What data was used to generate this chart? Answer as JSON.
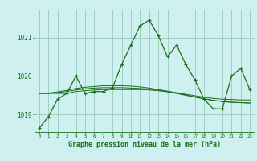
{
  "xlabel": "Graphe pression niveau de la mer (hPa)",
  "background_color": "#cff0f0",
  "grid_color": "#99ccbb",
  "line_color": "#1a6e1a",
  "hours": [
    0,
    1,
    2,
    3,
    4,
    5,
    6,
    7,
    8,
    9,
    10,
    11,
    12,
    13,
    14,
    15,
    16,
    17,
    18,
    19,
    20,
    21,
    22,
    23
  ],
  "main_series": [
    1018.65,
    1018.95,
    1019.4,
    1019.55,
    1020.0,
    1019.55,
    1019.6,
    1019.6,
    1019.7,
    1020.3,
    1020.8,
    1021.3,
    1021.45,
    1021.05,
    1020.5,
    1020.8,
    1020.3,
    1019.9,
    1019.4,
    1019.15,
    1019.15,
    1020.0,
    1020.2,
    1019.65
  ],
  "smooth1": [
    1019.55,
    1019.55,
    1019.55,
    1019.55,
    1019.6,
    1019.62,
    1019.64,
    1019.65,
    1019.65,
    1019.65,
    1019.65,
    1019.65,
    1019.64,
    1019.62,
    1019.6,
    1019.57,
    1019.53,
    1019.49,
    1019.45,
    1019.42,
    1019.4,
    1019.39,
    1019.38,
    1019.38
  ],
  "smooth2": [
    1019.55,
    1019.55,
    1019.57,
    1019.6,
    1019.64,
    1019.67,
    1019.69,
    1019.7,
    1019.7,
    1019.7,
    1019.69,
    1019.68,
    1019.66,
    1019.63,
    1019.59,
    1019.55,
    1019.5,
    1019.45,
    1019.41,
    1019.37,
    1019.34,
    1019.32,
    1019.31,
    1019.3
  ],
  "smooth3": [
    1019.56,
    1019.56,
    1019.59,
    1019.63,
    1019.68,
    1019.71,
    1019.73,
    1019.75,
    1019.75,
    1019.75,
    1019.74,
    1019.72,
    1019.69,
    1019.65,
    1019.61,
    1019.56,
    1019.51,
    1019.46,
    1019.41,
    1019.37,
    1019.34,
    1019.32,
    1019.31,
    1019.3
  ],
  "ylim": [
    1018.55,
    1021.72
  ],
  "yticks": [
    1019.0,
    1020.0,
    1021.0
  ],
  "ytick_labels": [
    "1019",
    "1020",
    "1021"
  ]
}
